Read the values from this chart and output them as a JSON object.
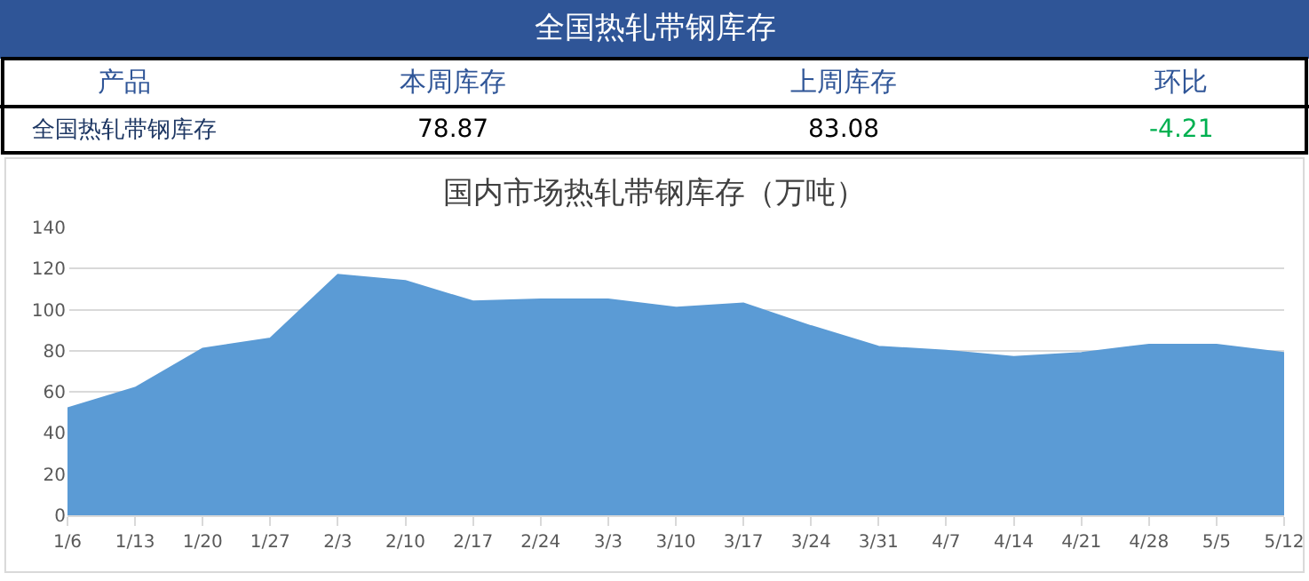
{
  "chart_data": {
    "type": "area",
    "title": "国内市场热轧带钢库存（万吨）",
    "annotations": [
      "全国热轧带钢库存",
      "产品",
      "本周库存",
      "上周库存",
      "环比",
      "全国热轧带钢库存",
      "78.87",
      "83.08",
      "-4.21"
    ],
    "categories": [
      "1/6",
      "1/13",
      "1/20",
      "1/27",
      "2/3",
      "2/10",
      "2/17",
      "2/24",
      "3/3",
      "3/10",
      "3/17",
      "3/24",
      "3/31",
      "4/7",
      "4/14",
      "4/21",
      "4/28",
      "5/5",
      "5/12"
    ],
    "series": [
      {
        "color": "#5b9bd5",
        "values": [
          52,
          62,
          81,
          86,
          117,
          114,
          104,
          105,
          105,
          101,
          103,
          92,
          82,
          80,
          77,
          79,
          83,
          83,
          79
        ]
      }
    ],
    "ylim": [
      0,
      140
    ],
    "yticks": [
      0,
      20,
      40,
      60,
      80,
      100,
      120,
      140
    ],
    "grid": "y",
    "legend": false
  }
}
